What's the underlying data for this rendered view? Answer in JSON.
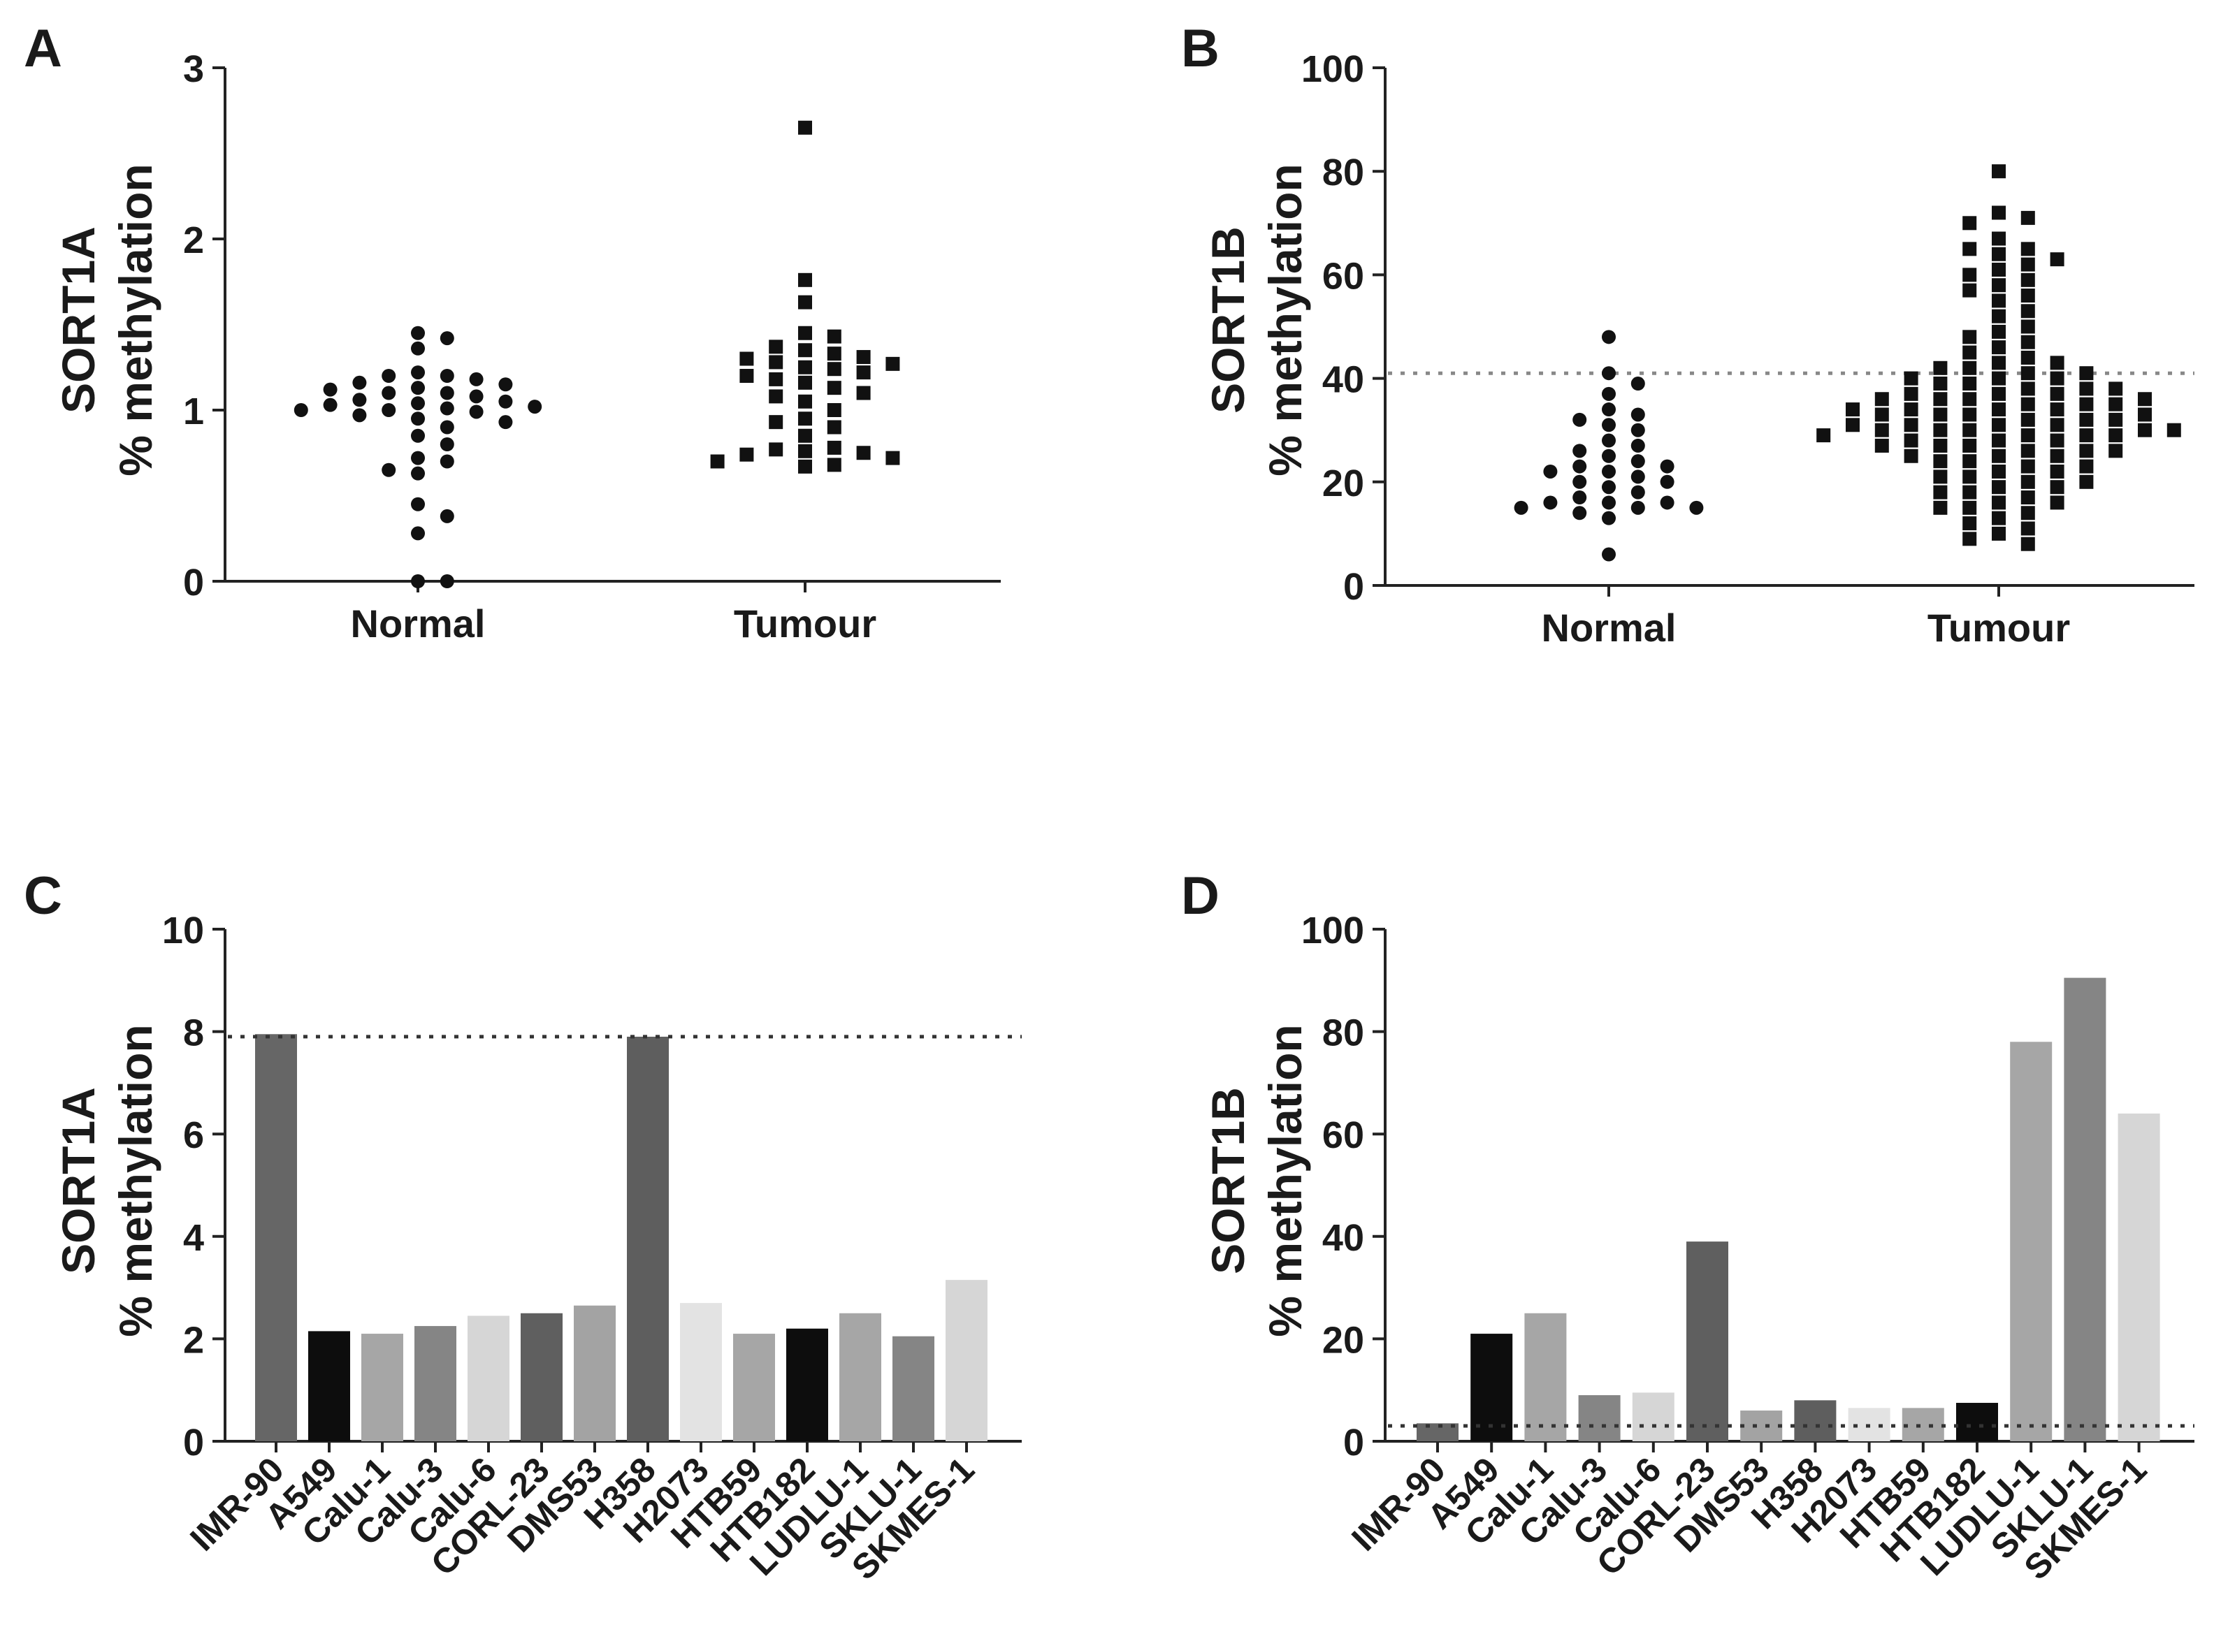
{
  "chart_data": [
    {
      "panel": "A",
      "type": "scatter",
      "categories": [
        "Normal",
        "Tumour"
      ],
      "ylabel": [
        "SORT1A",
        "% methylation"
      ],
      "ylim": [
        0,
        3
      ],
      "yticks": [
        "0",
        "1",
        "2",
        "3"
      ],
      "series": [
        {
          "marker": "circle",
          "values": [
            1.45,
            1.42,
            1.36,
            1.22,
            1.2,
            1.2,
            1.18,
            1.16,
            1.15,
            1.13,
            1.12,
            1.1,
            1.1,
            1.08,
            1.06,
            1.05,
            1.04,
            1.03,
            1.02,
            1.01,
            1.0,
            1.0,
            0.99,
            0.97,
            0.95,
            0.93,
            0.9,
            0.85,
            0.8,
            0.72,
            0.7,
            0.65,
            0.63,
            0.45,
            0.38,
            0.28,
            0.0,
            0.0
          ]
        },
        {
          "marker": "square",
          "values": [
            2.65,
            1.76,
            1.63,
            1.45,
            1.43,
            1.37,
            1.35,
            1.33,
            1.31,
            1.3,
            1.28,
            1.27,
            1.25,
            1.24,
            1.22,
            1.2,
            1.18,
            1.16,
            1.13,
            1.1,
            1.08,
            1.05,
            1.0,
            0.95,
            0.93,
            0.9,
            0.85,
            0.78,
            0.77,
            0.76,
            0.75,
            0.74,
            0.72,
            0.7,
            0.68,
            0.67
          ]
        }
      ]
    },
    {
      "panel": "B",
      "type": "scatter",
      "categories": [
        "Normal",
        "Tumour"
      ],
      "ylabel": [
        "SORT1B",
        "% methylation"
      ],
      "ylim": [
        0,
        100
      ],
      "yticks": [
        "0",
        "20",
        "40",
        "60",
        "80",
        "100"
      ],
      "reference_line": 41,
      "series": [
        {
          "marker": "circle",
          "values": [
            48,
            41,
            39,
            37,
            34,
            33,
            32,
            31,
            30,
            28,
            27,
            26,
            25,
            24,
            23,
            23,
            22,
            22,
            21,
            20,
            20,
            19,
            18,
            17,
            16,
            16,
            16,
            15,
            15,
            15,
            14,
            13,
            6
          ]
        },
        {
          "marker": "square",
          "values": [
            80,
            72,
            71,
            70,
            67,
            65,
            65,
            64,
            63,
            62,
            61,
            60,
            59,
            58,
            57,
            56,
            55,
            53,
            52,
            50,
            49,
            48,
            47,
            46,
            45,
            44,
            43,
            43,
            42,
            42,
            41,
            41,
            40,
            40,
            40,
            39,
            39,
            38,
            38,
            38,
            37,
            37,
            37,
            36,
            36,
            36,
            36,
            35,
            35,
            35,
            34,
            34,
            34,
            34,
            33,
            33,
            33,
            33,
            32,
            32,
            32,
            31,
            31,
            31,
            31,
            30,
            30,
            30,
            30,
            30,
            29,
            29,
            29,
            29,
            28,
            28,
            28,
            27,
            27,
            27,
            26,
            26,
            26,
            25,
            25,
            25,
            24,
            24,
            23,
            23,
            22,
            22,
            21,
            21,
            20,
            20,
            19,
            19,
            18,
            18,
            17,
            16,
            16,
            15,
            15,
            14,
            13,
            12,
            11,
            10,
            9,
            8
          ]
        }
      ]
    },
    {
      "panel": "C",
      "type": "bar",
      "ylabel": [
        "SORT1A",
        "% methylation"
      ],
      "ylim": [
        0,
        10
      ],
      "yticks": [
        "0",
        "2",
        "4",
        "6",
        "8",
        "10"
      ],
      "reference_line": 7.9,
      "categories": [
        "IMR-90",
        "A549",
        "Calu-1",
        "Calu-3",
        "Calu-6",
        "CORL-23",
        "DMS53",
        "H358",
        "H2073",
        "HTB59",
        "HTB182",
        "LUDLU-1",
        "SKLU-1",
        "SKMES-1"
      ],
      "values": [
        7.95,
        2.15,
        2.1,
        2.25,
        2.45,
        2.5,
        2.65,
        7.9,
        2.7,
        2.1,
        2.2,
        2.5,
        2.05,
        3.15
      ],
      "colors": [
        "#666666",
        "#0d0d0d",
        "#a6a6a6",
        "#858585",
        "#d6d6d6",
        "#5f5f5f",
        "#a3a3a3",
        "#5e5e5e",
        "#e3e3e3",
        "#a6a6a6",
        "#0d0d0d",
        "#a6a6a6",
        "#858585",
        "#d6d6d6"
      ]
    },
    {
      "panel": "D",
      "type": "bar",
      "ylabel": [
        "SORT1B",
        "% methylation"
      ],
      "ylim": [
        0,
        100
      ],
      "yticks": [
        "0",
        "20",
        "40",
        "60",
        "80",
        "100"
      ],
      "reference_line": 3,
      "categories": [
        "IMR-90",
        "A549",
        "Calu-1",
        "Calu-3",
        "Calu-6",
        "CORL-23",
        "DMS53",
        "H358",
        "H2073",
        "HTB59",
        "HTB182",
        "LUDLU-1",
        "SKLU-1",
        "SKMES-1"
      ],
      "values": [
        3.5,
        21,
        25,
        9,
        9.5,
        39,
        6,
        8,
        6.5,
        6.5,
        7.5,
        78,
        90.5,
        64
      ],
      "colors": [
        "#666666",
        "#0d0d0d",
        "#a6a6a6",
        "#858585",
        "#d6d6d6",
        "#5f5f5f",
        "#a3a3a3",
        "#5e5e5e",
        "#e3e3e3",
        "#a6a6a6",
        "#0d0d0d",
        "#a6a6a6",
        "#858585",
        "#d6d6d6"
      ]
    }
  ]
}
